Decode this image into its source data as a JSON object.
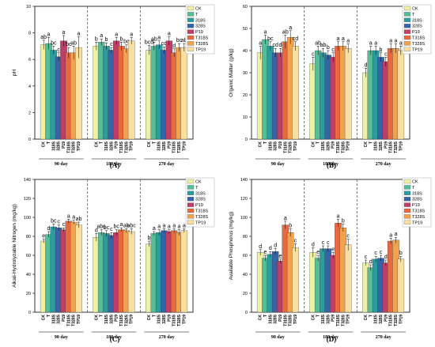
{
  "chart_data": [
    {
      "type": "bar",
      "panel_label": "(A)",
      "ylabel": "pH",
      "ylim": [
        0,
        10
      ],
      "yticks": [
        0,
        2,
        4,
        6,
        8,
        10
      ],
      "groups": [
        "90 day",
        "180 day",
        "270 day"
      ],
      "categories": [
        "CK",
        "T",
        "318S",
        "328S",
        "P19",
        "T318S",
        "T328S",
        "TP19"
      ],
      "values": [
        [
          7.1,
          7.2,
          6.7,
          6.2,
          7.4,
          6.5,
          6.5,
          6.9
        ],
        [
          7.0,
          7.3,
          7.0,
          6.7,
          7.4,
          7.0,
          6.8,
          7.4
        ],
        [
          6.7,
          7.0,
          7.1,
          6.7,
          7.4,
          6.5,
          6.9,
          6.9
        ]
      ],
      "errors": [
        [
          0.35,
          0.45,
          0.3,
          0.3,
          0.4,
          0.4,
          0.5,
          0.8
        ],
        [
          0.3,
          0.25,
          0.25,
          0.2,
          0.25,
          0.3,
          0.3,
          0.25
        ],
        [
          0.35,
          0.3,
          0.3,
          0.25,
          0.3,
          0.3,
          0.3,
          0.3
        ]
      ],
      "significance": [
        [
          "ab",
          "a",
          "bc",
          "c",
          "a",
          "bc",
          "ab",
          "a"
        ],
        [
          "b",
          "a",
          "b",
          "c",
          "a",
          "b",
          "bc",
          "a"
        ],
        [
          "bcd",
          "ab",
          "a",
          "cd",
          "a",
          "d",
          "bc",
          "ab"
        ]
      ]
    },
    {
      "type": "bar",
      "panel_label": "(B)",
      "ylabel": "Organic Matter (g/kg)",
      "ylim": [
        0,
        60
      ],
      "yticks": [
        0,
        10,
        20,
        30,
        40,
        50,
        60
      ],
      "groups": [
        "90 day",
        "180 day",
        "270 day"
      ],
      "categories": [
        "CK",
        "T",
        "318S",
        "328S",
        "P19",
        "T318S",
        "T328S",
        "TP19"
      ],
      "values": [
        [
          39,
          45,
          42,
          39,
          39,
          44,
          46,
          42
        ],
        [
          34,
          40,
          39,
          38,
          37,
          42,
          42,
          41
        ],
        [
          30,
          40,
          40,
          37,
          35,
          41,
          41,
          40
        ]
      ],
      "errors": [
        [
          3,
          2,
          2,
          2,
          2,
          3,
          3,
          2
        ],
        [
          3,
          2,
          2,
          2,
          2,
          2,
          2,
          2
        ],
        [
          2,
          2,
          2,
          2,
          2,
          2,
          2,
          2
        ]
      ],
      "significance": [
        [
          "a",
          "a",
          "bc",
          "cd",
          "d",
          "ab",
          "a",
          "cd"
        ],
        [
          "c",
          "ab",
          "ab",
          "b",
          "c",
          "a",
          "a",
          "a"
        ],
        [
          "d",
          "a",
          "a",
          "b",
          "c",
          "a",
          "a",
          "a"
        ]
      ]
    },
    {
      "type": "bar",
      "panel_label": "(C)",
      "ylabel": "Alkali-Hydrolyzable Nitrogen (mg/kg)",
      "ylim": [
        0,
        140
      ],
      "yticks": [
        0,
        20,
        40,
        60,
        80,
        100,
        120,
        140
      ],
      "groups": [
        "90 day",
        "180 day",
        "270 day"
      ],
      "categories": [
        "CK",
        "T",
        "318S",
        "328S",
        "P19",
        "T318S",
        "T328S",
        "TP19"
      ],
      "values": [
        [
          75,
          82,
          90,
          89,
          87,
          96,
          95,
          92
        ],
        [
          79,
          84,
          83,
          81,
          84,
          87,
          86,
          85
        ],
        [
          72,
          83,
          84,
          86,
          85,
          86,
          84,
          86
        ]
      ],
      "errors": [
        [
          2,
          3,
          3,
          3,
          2,
          2,
          2,
          3
        ],
        [
          4,
          3,
          3,
          3,
          3,
          2,
          2,
          3
        ],
        [
          3,
          2,
          3,
          2,
          2,
          2,
          3,
          2
        ]
      ],
      "significance": [
        [
          "e",
          "d",
          "bc",
          "c",
          "c",
          "a",
          "a",
          "ab"
        ],
        [
          "d",
          "abc",
          "bc",
          "c",
          "bc",
          "a",
          "ab",
          "abc"
        ],
        [
          "b",
          "a",
          "a",
          "a",
          "a",
          "a",
          "a",
          "a"
        ]
      ]
    },
    {
      "type": "bar",
      "panel_label": "(D)",
      "ylabel": "Available Phosphorus (mg/kg)",
      "ylim": [
        0,
        140
      ],
      "yticks": [
        0,
        20,
        40,
        60,
        80,
        100,
        120,
        140
      ],
      "groups": [
        "90 day",
        "180 day",
        "270 day"
      ],
      "categories": [
        "CK",
        "T",
        "318S",
        "328S",
        "P19",
        "T318S",
        "T328S",
        "TP19"
      ],
      "values": [
        [
          63,
          57,
          61,
          64,
          54,
          92,
          84,
          68
        ],
        [
          63,
          57,
          67,
          67,
          60,
          94,
          89,
          71
        ],
        [
          52,
          47,
          56,
          57,
          52,
          75,
          76,
          56
        ]
      ],
      "errors": [
        [
          3,
          3,
          3,
          3,
          2,
          4,
          4,
          4
        ],
        [
          5,
          3,
          3,
          3,
          3,
          4,
          4,
          6
        ],
        [
          3,
          3,
          3,
          3,
          3,
          3,
          3,
          3
        ]
      ],
      "significance": [
        [
          "d",
          "e",
          "d",
          "d",
          "e",
          "a",
          "b",
          "c"
        ],
        [
          "d",
          "e",
          "c",
          "c",
          "e",
          "a",
          "b",
          "c"
        ],
        [
          "c",
          "d",
          "c",
          "c",
          "d",
          "a",
          "a",
          "b"
        ]
      ]
    }
  ],
  "legend": [
    "CK",
    "T",
    "318S",
    "328S",
    "P19",
    "T318S",
    "T328S",
    "TP19"
  ],
  "colors": [
    "#EEF0A6",
    "#55BE96",
    "#2C9D9E",
    "#3564A8",
    "#BE3E66",
    "#E8683F",
    "#F0A24C",
    "#F9E0A0"
  ]
}
